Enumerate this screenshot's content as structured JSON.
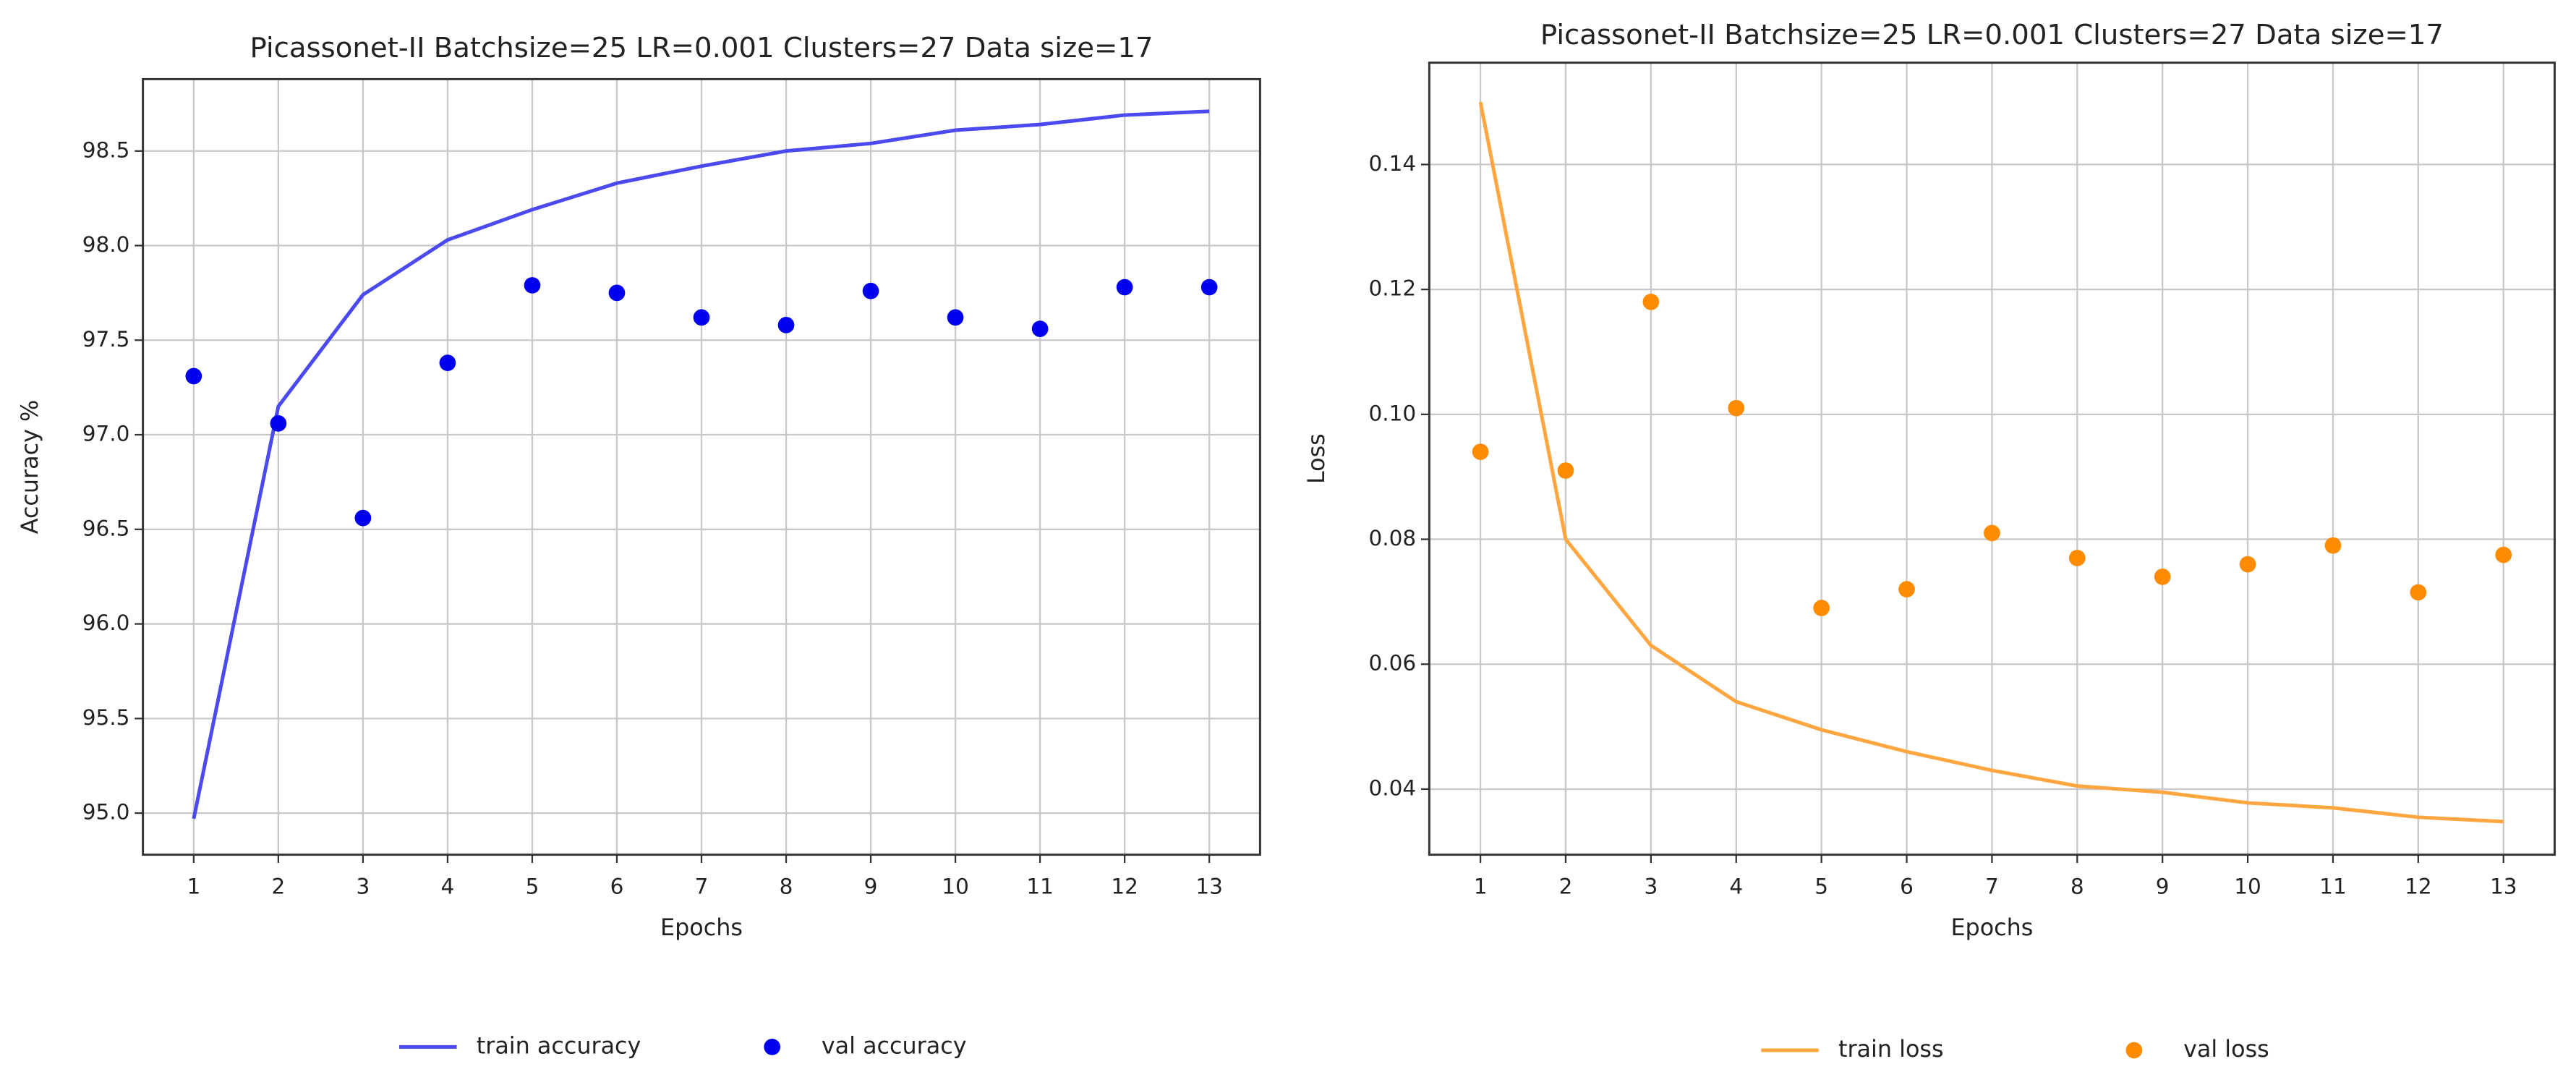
{
  "chart_data": [
    {
      "type": "line",
      "title": "Picassonet-II Batchsize=25 LR=0.001 Clusters=27 Data size=17",
      "x_label": "Epochs",
      "y_label": "Accuracy %",
      "x": [
        1,
        2,
        3,
        4,
        5,
        6,
        7,
        8,
        9,
        10,
        11,
        12,
        13
      ],
      "xlim": [
        0.4,
        13.6
      ],
      "xticks": [
        1,
        2,
        3,
        4,
        5,
        6,
        7,
        8,
        9,
        10,
        11,
        12,
        13
      ],
      "ylim": [
        94.78,
        98.88
      ],
      "yticks": [
        {
          "value": 95,
          "label": "95.0"
        },
        95.5,
        {
          "value": 96,
          "label": "96.0"
        },
        96.5,
        {
          "value": 97,
          "label": "97.0"
        },
        97.5,
        {
          "value": 98,
          "label": "98.0"
        },
        98.5
      ],
      "grid": true,
      "legend": "below",
      "series": [
        {
          "name": "train accuracy",
          "kind": "line",
          "color": "#4a4af0",
          "values": [
            94.97,
            97.15,
            97.74,
            98.03,
            98.19,
            98.33,
            98.42,
            98.5,
            98.54,
            98.61,
            98.64,
            98.69,
            98.71
          ]
        },
        {
          "name": "val accuracy",
          "kind": "scatter",
          "color": "#0000ee",
          "values": [
            97.31,
            97.06,
            96.56,
            97.38,
            97.79,
            97.75,
            97.62,
            97.58,
            97.76,
            97.62,
            97.56,
            97.78,
            97.78
          ]
        }
      ]
    },
    {
      "type": "line",
      "title": "Picassonet-II Batchsize=25 LR=0.001 Clusters=27 Data size=17",
      "x_label": "Epochs",
      "y_label": "Loss",
      "x": [
        1,
        2,
        3,
        4,
        5,
        6,
        7,
        8,
        9,
        10,
        11,
        12,
        13
      ],
      "xlim": [
        0.4,
        13.6
      ],
      "xticks": [
        1,
        2,
        3,
        4,
        5,
        6,
        7,
        8,
        9,
        10,
        11,
        12,
        13
      ],
      "ylim": [
        0.0295,
        0.1563
      ],
      "yticks": [
        0.04,
        0.06,
        0.08,
        {
          "value": 0.1,
          "label": "0.10"
        },
        0.12,
        0.14
      ],
      "grid": true,
      "legend": "below",
      "series": [
        {
          "name": "train loss",
          "kind": "line",
          "color": "#ffa640",
          "values": [
            0.15,
            0.08,
            0.063,
            0.054,
            0.0495,
            0.046,
            0.043,
            0.0405,
            0.0395,
            0.0378,
            0.037,
            0.0355,
            0.0348
          ]
        },
        {
          "name": "val loss",
          "kind": "scatter",
          "color": "#ff8c00",
          "values": [
            0.094,
            0.091,
            0.118,
            0.101,
            0.069,
            0.072,
            0.081,
            0.077,
            0.074,
            0.076,
            0.079,
            0.0715,
            0.0775
          ]
        }
      ]
    }
  ]
}
